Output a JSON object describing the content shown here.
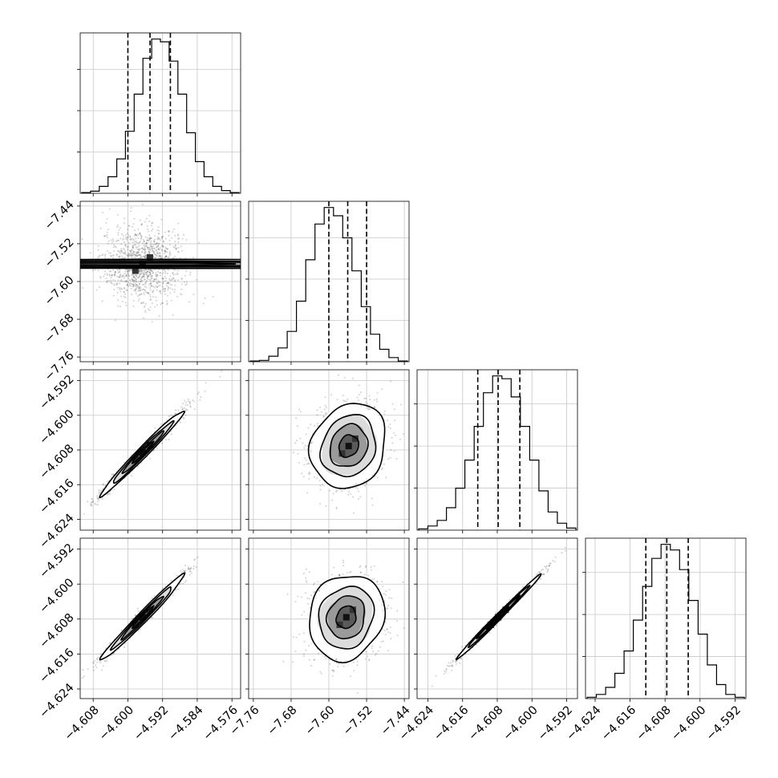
{
  "chart_data": {
    "type": "corner",
    "title": "",
    "grid": true,
    "parameters": [
      {
        "name": "",
        "range": [
          -4.611,
          -4.574
        ],
        "ticks": [
          -4.608,
          -4.6,
          -4.592,
          -4.584,
          -4.576
        ],
        "tick_labels": [
          "−4.608",
          "−4.600",
          "−4.592",
          "−4.584",
          "−4.576"
        ],
        "quantiles": [
          -4.6,
          -4.5949,
          -4.5902
        ]
      },
      {
        "name": "",
        "range": [
          -7.77,
          -7.43
        ],
        "ticks": [
          -7.76,
          -7.68,
          -7.6,
          -7.52,
          -7.44
        ],
        "tick_labels": [
          "−7.76",
          "−7.68",
          "−7.60",
          "−7.52",
          "−7.44"
        ],
        "quantiles": [
          -7.6,
          -7.56,
          -7.52
        ]
      },
      {
        "name": "",
        "range": [
          -4.6265,
          -4.5895
        ],
        "ticks": [
          -4.624,
          -4.616,
          -4.608,
          -4.6,
          -4.592
        ],
        "tick_labels": [
          "−4.624",
          "−4.616",
          "−4.608",
          "−4.600",
          "−4.592"
        ],
        "quantiles": [
          -4.6125,
          -4.6078,
          -4.6028
        ]
      },
      {
        "name": "",
        "range": [
          -4.6262,
          -4.5895
        ],
        "ticks": [
          -4.624,
          -4.616,
          -4.608,
          -4.6,
          -4.592
        ],
        "tick_labels": [
          "−4.624",
          "−4.616",
          "−4.608",
          "−4.600",
          "−4.592"
        ],
        "quantiles": [
          -4.6124,
          -4.6076,
          -4.6027
        ]
      }
    ],
    "histograms": [
      {
        "param": 0,
        "counts": [
          0.5,
          1.5,
          5,
          12,
          25,
          45,
          72,
          98,
          112,
          110,
          96,
          72,
          44,
          23,
          12,
          5,
          2,
          0.5
        ]
      },
      {
        "param": 1,
        "counts": [
          0.5,
          1,
          4,
          10,
          22,
          44,
          74,
          100,
          112,
          106,
          90,
          66,
          40,
          20,
          9,
          3,
          0.5
        ]
      },
      {
        "param": 2,
        "counts": [
          1,
          3,
          7,
          16,
          30,
          50,
          74,
          98,
          110,
          108,
          95,
          74,
          50,
          28,
          13,
          5,
          1.5
        ]
      },
      {
        "param": 3,
        "counts": [
          1,
          3,
          8,
          18,
          34,
          56,
          80,
          100,
          110,
          106,
          92,
          70,
          46,
          24,
          10,
          3,
          1
        ]
      }
    ],
    "scatter_panels": [
      {
        "x_param": 0,
        "y_param": 1,
        "correlation": 0.0,
        "x_sd": 0.0048,
        "y_sd": 0.04,
        "level_fracs": [
          0.52,
          1.0,
          1.45,
          2.0
        ],
        "peak": [
          -4.5966,
          -7.563
        ]
      },
      {
        "x_param": 0,
        "y_param": 2,
        "correlation": 0.985,
        "x_sd": 0.0048,
        "y_sd": 0.0049,
        "level_fracs": [
          0.52,
          1.0,
          1.45,
          2.0
        ],
        "peak": [
          -4.5966,
          -4.6086
        ]
      },
      {
        "x_param": 1,
        "y_param": 2,
        "correlation": 0.15,
        "x_sd": 0.04,
        "y_sd": 0.0049,
        "level_fracs": [
          0.52,
          1.0,
          1.45,
          2.0
        ],
        "peak": [
          -7.558,
          -4.6071
        ]
      },
      {
        "x_param": 0,
        "y_param": 3,
        "correlation": 0.985,
        "x_sd": 0.0048,
        "y_sd": 0.0049,
        "level_fracs": [
          0.52,
          1.0,
          1.45,
          2.0
        ],
        "peak": [
          -4.5966,
          -4.6076
        ]
      },
      {
        "x_param": 1,
        "y_param": 3,
        "correlation": 0.12,
        "x_sd": 0.04,
        "y_sd": 0.0049,
        "level_fracs": [
          0.52,
          1.0,
          1.45,
          2.0
        ],
        "peak": [
          -7.563,
          -4.6076
        ]
      },
      {
        "x_param": 2,
        "y_param": 3,
        "correlation": 0.995,
        "x_sd": 0.0049,
        "y_sd": 0.0049,
        "level_fracs": [
          0.52,
          1.0,
          1.45,
          2.0
        ],
        "peak": [
          -4.6078,
          -4.6076
        ]
      }
    ]
  }
}
